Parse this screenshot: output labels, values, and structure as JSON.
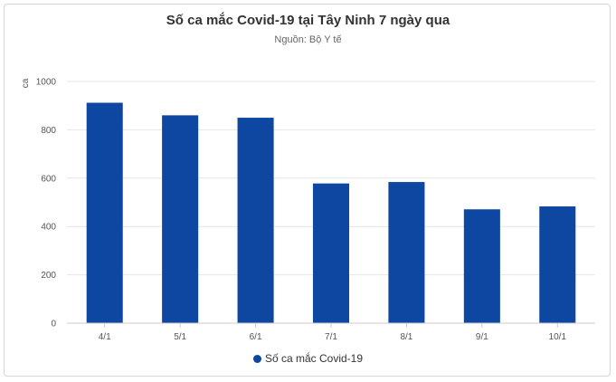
{
  "colors": {
    "bar": "#0d47a1",
    "grid": "#e6e6e6",
    "axis": "#cccccc"
  },
  "chart_data": {
    "type": "bar",
    "title": "Số ca mắc Covid-19 tại Tây Ninh 7 ngày qua",
    "subtitle": "Nguồn: Bộ Y tế",
    "xlabel": "",
    "ylabel": "ca",
    "ylim": [
      0,
      1000
    ],
    "yticks": [
      0,
      200,
      400,
      600,
      800,
      1000
    ],
    "categories": [
      "4/1",
      "5/1",
      "6/1",
      "7/1",
      "8/1",
      "9/1",
      "10/1"
    ],
    "series": [
      {
        "name": "Số ca mắc Covid-19",
        "values": [
          912,
          860,
          850,
          578,
          584,
          471,
          483
        ]
      }
    ],
    "grid": true,
    "legend": "bottom-center"
  }
}
